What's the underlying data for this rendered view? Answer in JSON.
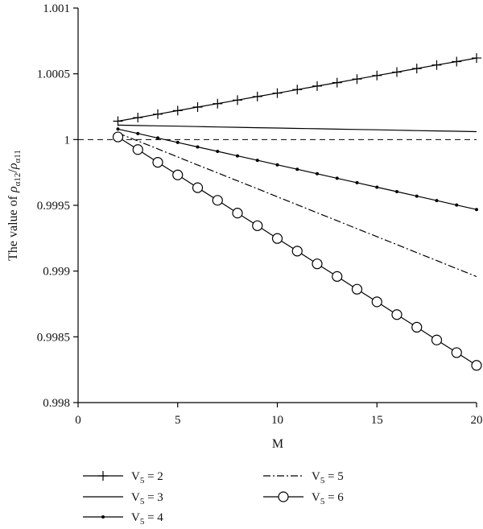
{
  "chart_data": {
    "type": "line",
    "title": "",
    "xlabel": "M",
    "ylabel": {
      "prefix": "The value of ",
      "rho": "ρ",
      "sub_num": "α12",
      "slash": "/",
      "sub_den": "α11"
    },
    "xlim": [
      0,
      20
    ],
    "ylim": [
      0.998,
      1.001
    ],
    "x_ticks": [
      0,
      5,
      10,
      15,
      20
    ],
    "x_tick_labels": [
      "0",
      "5",
      "10",
      "15",
      "20"
    ],
    "y_ticks": [
      0.998,
      0.9985,
      0.999,
      0.9995,
      1.0,
      1.0005,
      1.001
    ],
    "y_tick_labels": [
      "0.998",
      "0.9985",
      "0.999",
      "0.9995",
      "1",
      "1.0005",
      "1.001"
    ],
    "grid": false,
    "reference_line": {
      "y": 1.0,
      "style": "dashed"
    },
    "legend_position": "bottom",
    "x": [
      2,
      3,
      4,
      5,
      6,
      7,
      8,
      9,
      10,
      11,
      12,
      13,
      14,
      15,
      16,
      17,
      18,
      19,
      20
    ],
    "series": [
      {
        "name": "V5 = 2",
        "legend_main": "V",
        "legend_sub": "5",
        "legend_eq": " = 2",
        "marker": "plus",
        "dash": "",
        "values": [
          1.00014,
          1.000167,
          1.000193,
          1.00022,
          1.000247,
          1.000273,
          1.0003,
          1.000327,
          1.000353,
          1.00038,
          1.000407,
          1.000433,
          1.00046,
          1.000487,
          1.000513,
          1.00054,
          1.000567,
          1.000593,
          1.00062
        ]
      },
      {
        "name": "V5 = 3",
        "legend_main": "V",
        "legend_sub": "5",
        "legend_eq": " = 3",
        "marker": "none",
        "dash": "",
        "values": [
          1.00011,
          1.000107,
          1.000104,
          1.000102,
          1.000099,
          1.000096,
          1.000093,
          1.00009,
          1.000088,
          1.000085,
          1.000082,
          1.000079,
          1.000077,
          1.000074,
          1.000071,
          1.000068,
          1.000066,
          1.000063,
          1.00006
        ]
      },
      {
        "name": "V5 = 4",
        "legend_main": "V",
        "legend_sub": "5",
        "legend_eq": " = 4",
        "marker": "dot",
        "dash": "",
        "values": [
          1.00008,
          1.000046,
          1.000012,
          0.999978,
          0.999944,
          0.99991,
          0.999876,
          0.999842,
          0.999808,
          0.999774,
          0.99974,
          0.999706,
          0.999672,
          0.999638,
          0.999604,
          0.99957,
          0.999536,
          0.999502,
          0.999468
        ]
      },
      {
        "name": "V5 = 5",
        "legend_main": "V",
        "legend_sub": "5",
        "legend_eq": " = 5",
        "marker": "none",
        "dash": "9 3 2 3",
        "values": [
          1.00005,
          0.999989,
          0.999929,
          0.999868,
          0.999807,
          0.999747,
          0.999686,
          0.999626,
          0.999565,
          0.999504,
          0.999443,
          0.999383,
          0.999322,
          0.999262,
          0.999201,
          0.99914,
          0.99908,
          0.999019,
          0.998958
        ]
      },
      {
        "name": "V5 = 6",
        "legend_main": "V",
        "legend_sub": "5",
        "legend_eq": " = 6",
        "marker": "circle",
        "dash": "",
        "values": [
          1.00002,
          0.999924,
          0.999827,
          0.999731,
          0.999634,
          0.999538,
          0.999441,
          0.999345,
          0.999248,
          0.999152,
          0.999055,
          0.998959,
          0.998862,
          0.998766,
          0.998669,
          0.998573,
          0.998476,
          0.99838,
          0.998283
        ]
      }
    ]
  }
}
